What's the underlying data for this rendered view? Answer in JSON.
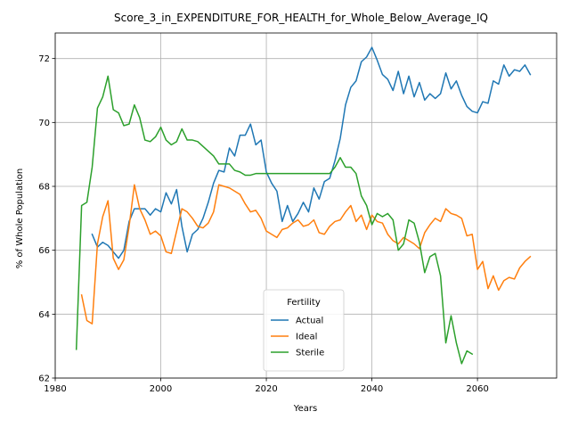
{
  "chart_data": {
    "type": "line",
    "title": "Score_3_in_EXPENDITURE_FOR_HEALTH_for_Whole_Below_Average_IQ",
    "xlabel": "Years",
    "ylabel": "% of Whole Population",
    "xlim": [
      1980,
      2075
    ],
    "ylim": [
      62,
      72.8
    ],
    "xticks": [
      1980,
      2000,
      2020,
      2040,
      2060
    ],
    "yticks": [
      62,
      64,
      66,
      68,
      70,
      72
    ],
    "grid": true,
    "legend": {
      "title": "Fertility",
      "placement": "lower center"
    },
    "series": [
      {
        "name": "Actual",
        "color": "#1f77b4",
        "x": [
          1987,
          1988,
          1989,
          1990,
          1991,
          1992,
          1993,
          1994,
          1995,
          1996,
          1997,
          1998,
          1999,
          2000,
          2001,
          2002,
          2003,
          2004,
          2005,
          2006,
          2007,
          2008,
          2009,
          2010,
          2011,
          2012,
          2013,
          2014,
          2015,
          2016,
          2017,
          2018,
          2019,
          2020,
          2021,
          2022,
          2023,
          2024,
          2025,
          2026,
          2027,
          2028,
          2029,
          2030,
          2031,
          2032,
          2033,
          2034,
          2035,
          2036,
          2037,
          2038,
          2039,
          2040,
          2041,
          2042,
          2043,
          2044,
          2045,
          2046,
          2047,
          2048,
          2049,
          2050,
          2051,
          2052,
          2053,
          2054,
          2055,
          2056,
          2057,
          2058,
          2059,
          2060,
          2061,
          2062,
          2063,
          2064,
          2065,
          2066,
          2067,
          2068,
          2069,
          2070
        ],
        "y": [
          66.5,
          66.1,
          66.25,
          66.15,
          65.95,
          65.75,
          66.0,
          66.9,
          67.3,
          67.3,
          67.3,
          67.1,
          67.3,
          67.2,
          67.8,
          67.45,
          67.9,
          66.75,
          65.95,
          66.5,
          66.65,
          67.0,
          67.5,
          68.1,
          68.5,
          68.45,
          69.2,
          68.95,
          69.6,
          69.6,
          69.95,
          69.3,
          69.45,
          68.45,
          68.1,
          67.85,
          66.9,
          67.4,
          66.9,
          67.15,
          67.5,
          67.2,
          67.95,
          67.6,
          68.15,
          68.25,
          68.8,
          69.5,
          70.55,
          71.1,
          71.3,
          71.9,
          72.05,
          72.35,
          71.95,
          71.5,
          71.35,
          71.0,
          71.6,
          70.9,
          71.45,
          70.8,
          71.25,
          70.7,
          70.9,
          70.75,
          70.9,
          71.55,
          71.05,
          71.3,
          70.85,
          70.5,
          70.35,
          70.3,
          70.65,
          70.6,
          71.3,
          71.2,
          71.8,
          71.45,
          71.65,
          71.6,
          71.8,
          71.5
        ]
      },
      {
        "name": "Ideal",
        "color": "#ff7f0e",
        "x": [
          1985,
          1986,
          1987,
          1988,
          1989,
          1990,
          1991,
          1992,
          1993,
          1994,
          1995,
          1996,
          1997,
          1998,
          1999,
          2000,
          2001,
          2002,
          2003,
          2004,
          2005,
          2006,
          2007,
          2008,
          2009,
          2010,
          2011,
          2012,
          2013,
          2014,
          2015,
          2016,
          2017,
          2018,
          2019,
          2020,
          2021,
          2022,
          2023,
          2024,
          2025,
          2026,
          2027,
          2028,
          2029,
          2030,
          2031,
          2032,
          2033,
          2034,
          2035,
          2036,
          2037,
          2038,
          2039,
          2040,
          2041,
          2042,
          2043,
          2044,
          2045,
          2046,
          2047,
          2048,
          2049,
          2050,
          2051,
          2052,
          2053,
          2054,
          2055,
          2056,
          2057,
          2058,
          2059,
          2060,
          2061,
          2062,
          2063,
          2064,
          2065,
          2066,
          2067,
          2068,
          2069,
          2070
        ],
        "y": [
          64.6,
          63.8,
          63.7,
          66.2,
          67.05,
          67.55,
          65.75,
          65.4,
          65.7,
          66.75,
          68.05,
          67.3,
          66.95,
          66.5,
          66.6,
          66.45,
          65.95,
          65.9,
          66.6,
          67.3,
          67.2,
          67.0,
          66.75,
          66.7,
          66.85,
          67.2,
          68.05,
          68.0,
          67.95,
          67.85,
          67.75,
          67.45,
          67.2,
          67.25,
          67.0,
          66.6,
          66.5,
          66.4,
          66.65,
          66.7,
          66.85,
          66.95,
          66.75,
          66.8,
          66.95,
          66.55,
          66.5,
          66.75,
          66.9,
          66.95,
          67.2,
          67.4,
          66.9,
          67.1,
          66.65,
          67.1,
          66.9,
          66.85,
          66.5,
          66.3,
          66.2,
          66.4,
          66.3,
          66.2,
          66.05,
          66.55,
          66.8,
          67.0,
          66.9,
          67.3,
          67.15,
          67.1,
          67.0,
          66.45,
          66.5,
          65.4,
          65.65,
          64.8,
          65.2,
          64.75,
          65.05,
          65.15,
          65.1,
          65.45,
          65.65,
          65.8
        ]
      },
      {
        "name": "Sterile",
        "color": "#2ca02c",
        "x": [
          1984,
          1985,
          1986,
          1987,
          1988,
          1989,
          1990,
          1991,
          1992,
          1993,
          1994,
          1995,
          1996,
          1997,
          1998,
          1999,
          2000,
          2001,
          2002,
          2003,
          2004,
          2005,
          2006,
          2007,
          2008,
          2009,
          2010,
          2011,
          2012,
          2013,
          2014,
          2015,
          2016,
          2017,
          2018,
          2019,
          2020,
          2021,
          2022,
          2023,
          2024,
          2025,
          2026,
          2027,
          2028,
          2029,
          2030,
          2031,
          2032,
          2033,
          2034,
          2035,
          2036,
          2037,
          2038,
          2039,
          2040,
          2041,
          2042,
          2043,
          2044,
          2045,
          2046,
          2047,
          2048,
          2049,
          2050,
          2051,
          2052,
          2053,
          2054,
          2055,
          2056,
          2057,
          2058,
          2059
        ],
        "y": [
          62.9,
          67.4,
          67.5,
          68.6,
          70.45,
          70.8,
          71.45,
          70.4,
          70.3,
          69.9,
          69.95,
          70.55,
          70.15,
          69.45,
          69.4,
          69.55,
          69.85,
          69.45,
          69.3,
          69.4,
          69.8,
          69.45,
          69.45,
          69.4,
          69.25,
          69.1,
          68.95,
          68.7,
          68.7,
          68.7,
          68.5,
          68.45,
          68.35,
          68.35,
          68.4,
          68.4,
          68.4,
          68.4,
          68.4,
          68.4,
          68.4,
          68.4,
          68.4,
          68.4,
          68.4,
          68.4,
          68.4,
          68.4,
          68.4,
          68.6,
          68.9,
          68.6,
          68.6,
          68.4,
          67.7,
          67.4,
          66.8,
          67.15,
          67.05,
          67.15,
          66.95,
          66.0,
          66.2,
          66.95,
          66.85,
          66.25,
          65.3,
          65.8,
          65.9,
          65.2,
          63.1,
          63.95,
          63.1,
          62.45,
          62.85,
          62.75
        ]
      }
    ]
  }
}
